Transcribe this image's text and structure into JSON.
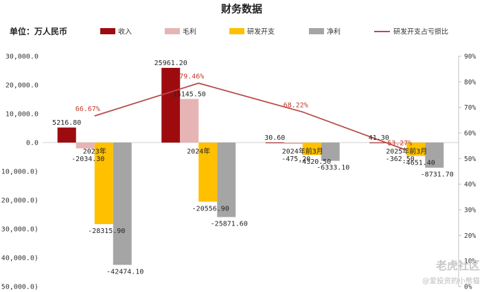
{
  "chart_data": {
    "type": "bar",
    "title": "财务数据",
    "unit_label": "单位：万人民币",
    "categories": [
      "2023年",
      "2024年",
      "2024年前3月",
      "2025年前3月"
    ],
    "series": [
      {
        "name": "收入",
        "color": "#9e0b0f",
        "values": [
          5216.8,
          25961.2,
          30.6,
          41.3
        ],
        "labels": [
          "5216.80",
          "25961.20",
          "30.60",
          "41.30"
        ]
      },
      {
        "name": "毛利",
        "color": "#e6b4b4",
        "values": [
          -2034.3,
          15145.5,
          -475.2,
          -362.5
        ],
        "labels": [
          "-2034.30",
          "15145.50",
          "-475.20",
          "-362.50"
        ]
      },
      {
        "name": "研发开支",
        "color": "#ffc000",
        "values": [
          -28315.9,
          -20556.9,
          -4320.5,
          -4651.4
        ],
        "labels": [
          "-28315.90",
          "-20556.90",
          "-4320.50",
          "-4651.40"
        ]
      },
      {
        "name": "净利",
        "color": "#a5a5a5",
        "values": [
          -42474.1,
          -25871.6,
          -6333.1,
          -8731.7
        ],
        "labels": [
          "-42474.10",
          "-25871.60",
          "-6333.10",
          "-8731.70"
        ]
      }
    ],
    "line_series": {
      "name": "研发开支占亏损比",
      "color": "#b84a4a",
      "values": [
        66.67,
        79.46,
        68.22,
        53.27
      ],
      "labels": [
        "66.67%",
        "79.46%",
        "68.22%",
        "53.27%"
      ]
    },
    "y_left": {
      "min": -50000,
      "max": 30000,
      "step": 10000,
      "tick_labels": [
        "(50,000.0)",
        "(40,000.0)",
        "(30,000.0)",
        "(20,000.0)",
        "(10,000.0)",
        "0.0",
        "10,000.0",
        "20,000.0",
        "30,000.0"
      ]
    },
    "y_right": {
      "min": 0,
      "max": 90,
      "step": 10,
      "tick_labels": [
        "0%",
        "10%",
        "20%",
        "30%",
        "40%",
        "50%",
        "60%",
        "70%",
        "80%",
        "90%"
      ]
    },
    "grid": false,
    "legend_position": "top"
  },
  "watermark": {
    "brand": "老虎社区",
    "handle": "@爱投资的小熊猫"
  }
}
